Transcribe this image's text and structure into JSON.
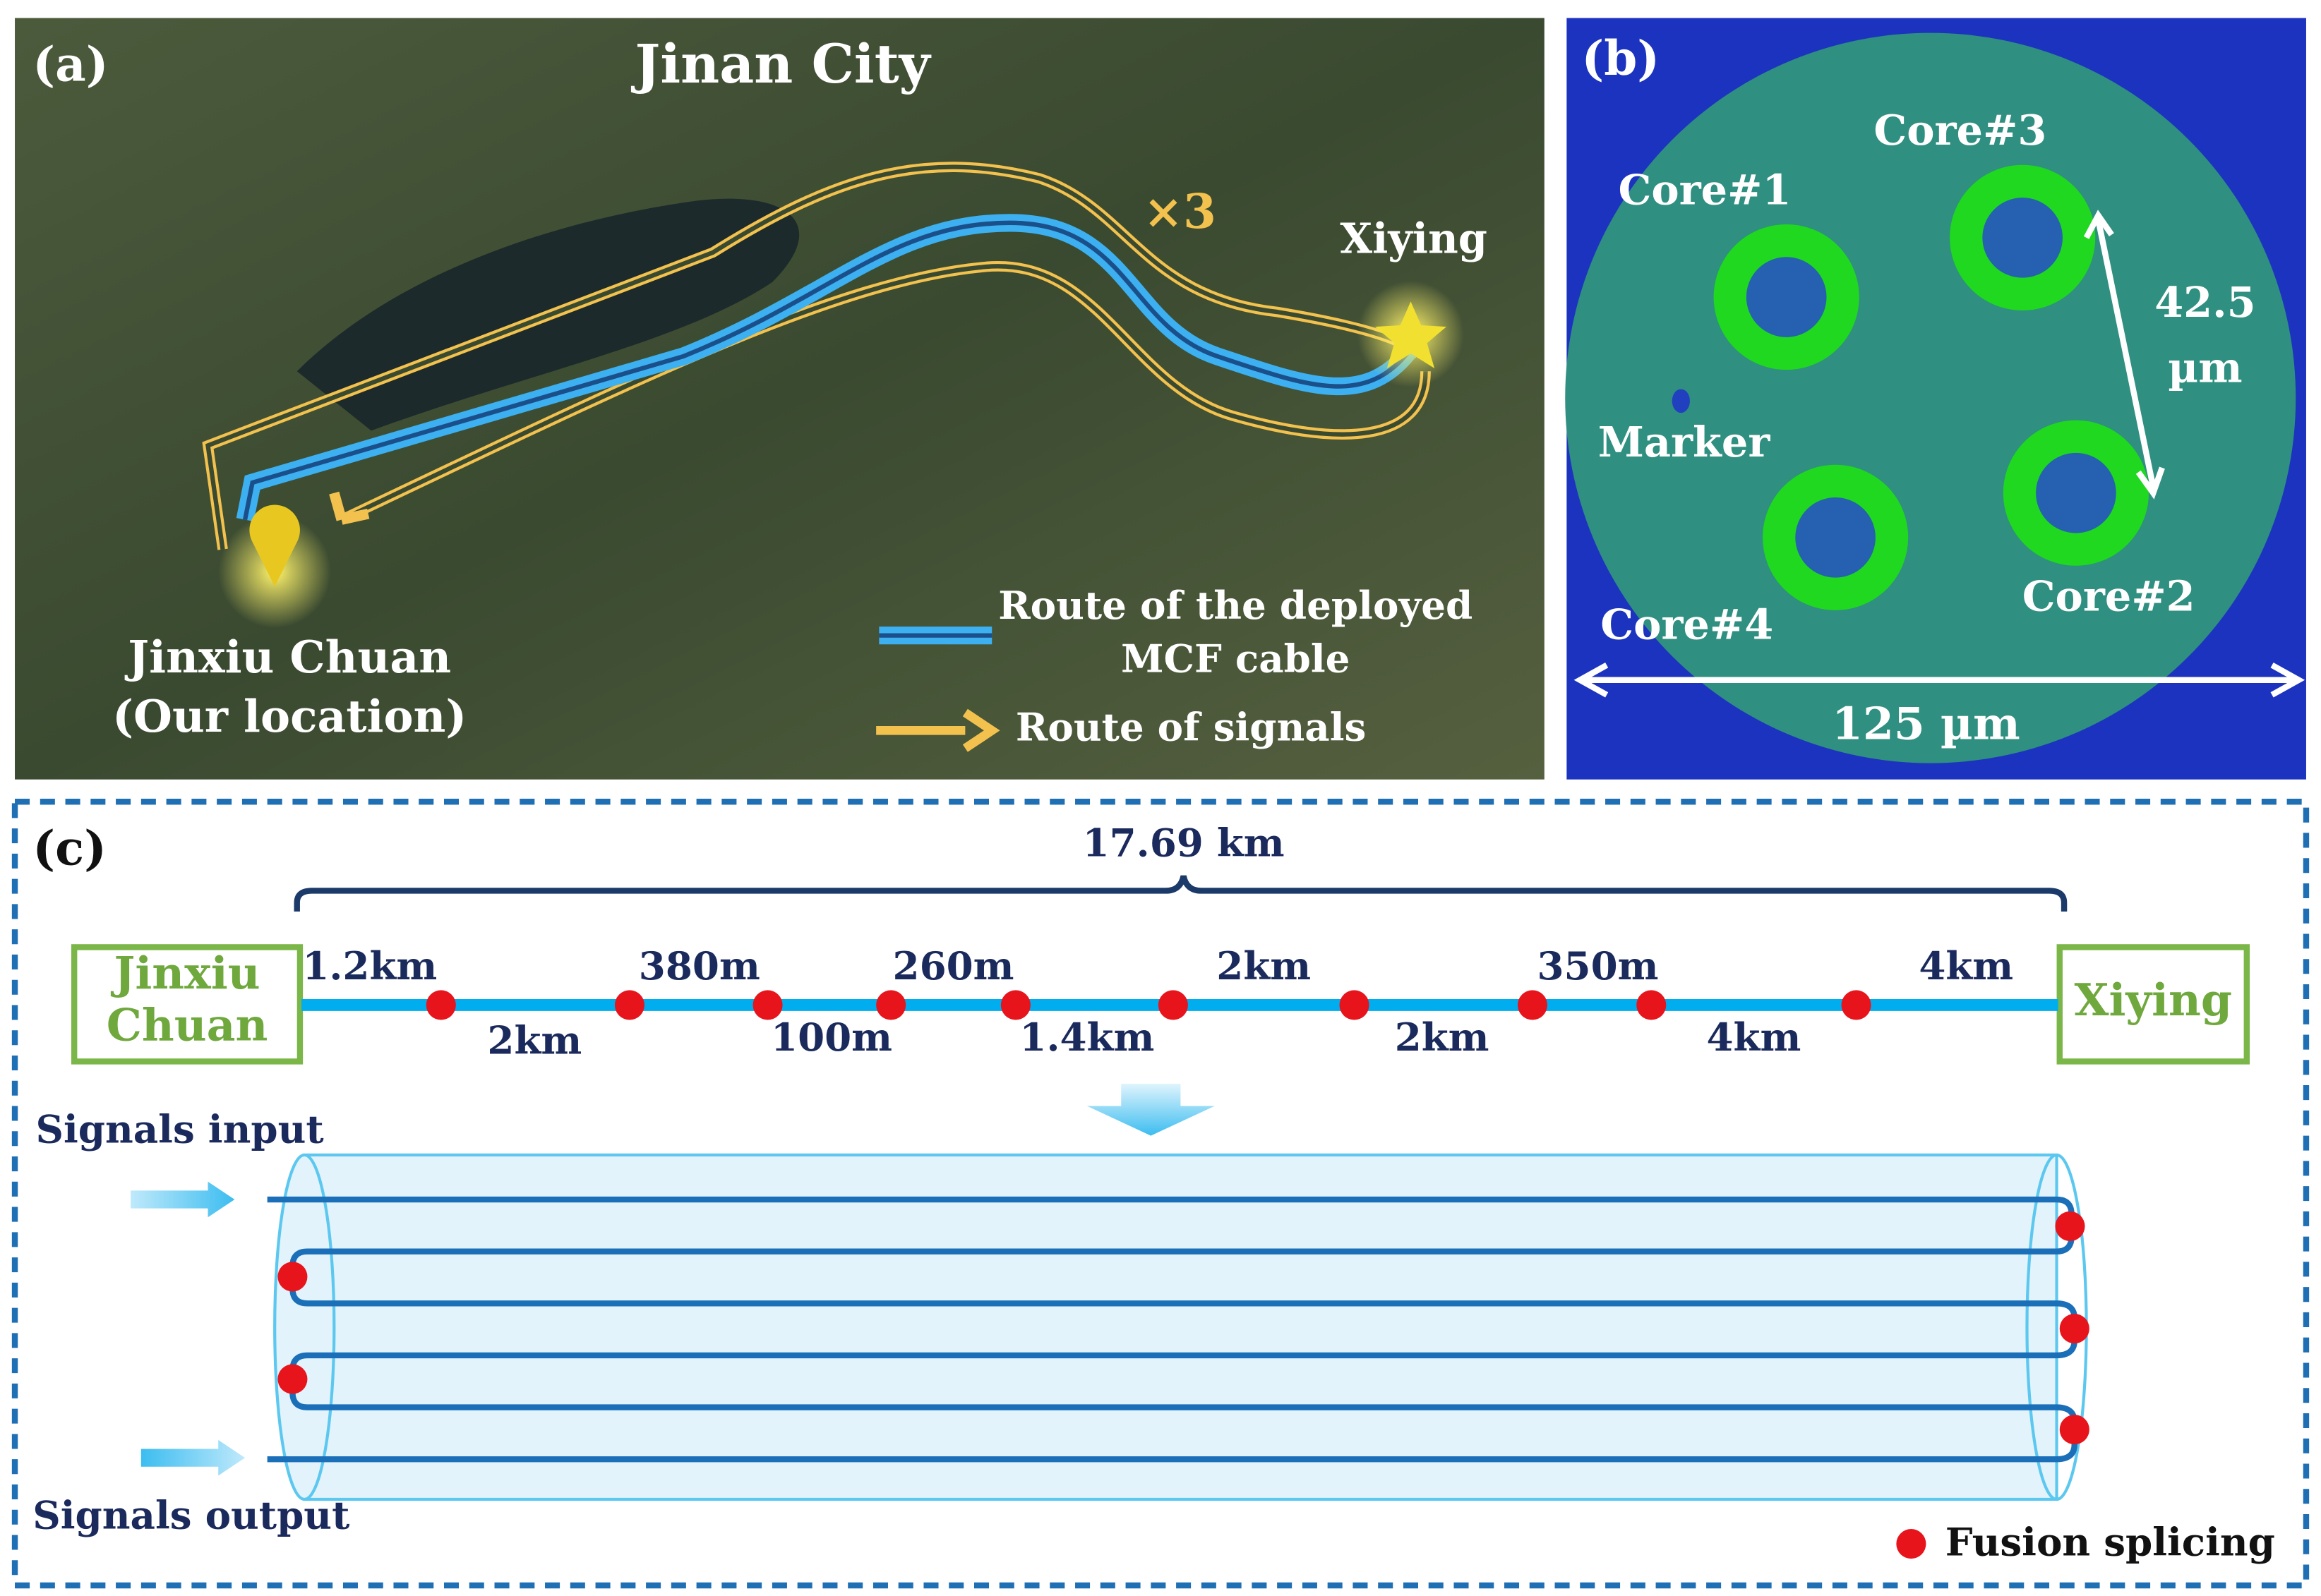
{
  "panels": {
    "a": {
      "label": "(a)",
      "title": "Jinan City",
      "repeat": "×3",
      "end_site": "Xiying",
      "start_site": [
        "Jinxiu Chuan",
        "(Our location)"
      ],
      "legend": {
        "cable": [
          "Route of the deployed",
          "MCF cable"
        ],
        "signals": "Route of  signals"
      }
    },
    "b": {
      "label": "(b)",
      "cores": [
        "Core#1",
        "Core#3",
        "Core#2",
        "Core#4"
      ],
      "marker": "Marker",
      "pitch": [
        "42.5",
        "µm"
      ],
      "diameter": "125 µm"
    },
    "c": {
      "label": "(c)",
      "total": "17.69 km",
      "start_box": [
        "Jinxiu",
        "Chuan"
      ],
      "end_box": "Xiying",
      "segments_top": [
        "1.2km",
        "380m",
        "260m",
        "2km",
        "350m",
        "4km"
      ],
      "segments_bottom": [
        "2km",
        "100m",
        "1.4km",
        "2km",
        "4km"
      ],
      "input": "Signals input",
      "output": "Signals output",
      "legend": "Fusion splicing"
    }
  }
}
